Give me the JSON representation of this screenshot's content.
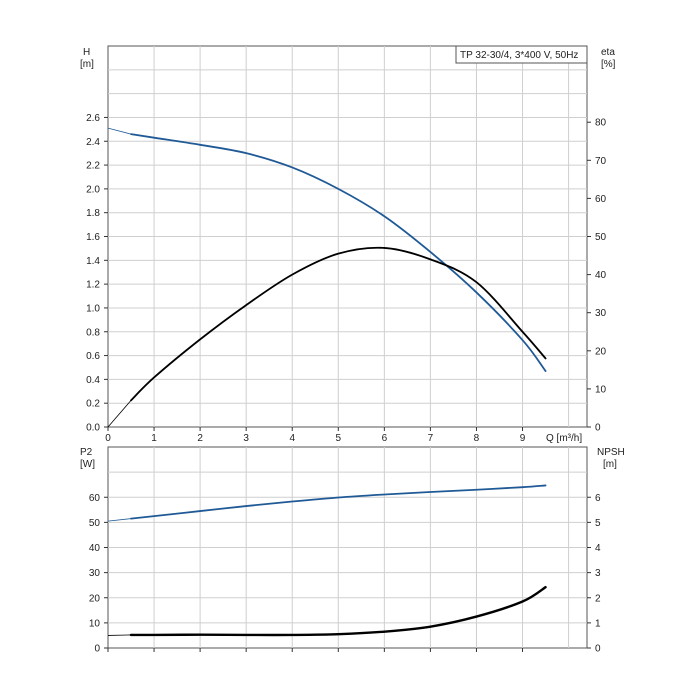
{
  "chart_data": [
    {
      "type": "line",
      "title": "TP 32-30/4, 3*400 V, 50Hz",
      "xlabel": "Q [m³/h]",
      "ylabel_left": [
        "H",
        "[m]"
      ],
      "ylabel_right": [
        "eta",
        "[%]"
      ],
      "xlim": [
        0,
        10.4
      ],
      "ylim_left": [
        0,
        3.2
      ],
      "ylim_right": [
        0,
        100
      ],
      "x_ticks": [
        "0",
        "1",
        "2",
        "3",
        "4",
        "5",
        "6",
        "7",
        "8",
        "9"
      ],
      "y_left_ticks": [
        "0.0",
        "0.2",
        "0.4",
        "0.6",
        "0.8",
        "1.0",
        "1.2",
        "1.4",
        "1.6",
        "1.8",
        "2.0",
        "2.2",
        "2.4",
        "2.6"
      ],
      "y_right_ticks": [
        "0",
        "10",
        "20",
        "30",
        "40",
        "50",
        "60",
        "70",
        "80"
      ],
      "grid": true,
      "series": [
        {
          "axis": "left",
          "color": "#1f5a96",
          "points": [
            [
              0,
              2.51
            ],
            [
              0.5,
              2.46
            ],
            [
              1,
              2.43
            ],
            [
              2,
              2.37
            ],
            [
              3,
              2.3
            ],
            [
              4,
              2.18
            ],
            [
              5,
              2.0
            ],
            [
              6,
              1.77
            ],
            [
              7,
              1.47
            ],
            [
              8,
              1.13
            ],
            [
              9,
              0.73
            ],
            [
              9.5,
              0.47
            ]
          ]
        },
        {
          "axis": "right",
          "color": "#000000",
          "points": [
            [
              0,
              0
            ],
            [
              0.5,
              7
            ],
            [
              1,
              13
            ],
            [
              2,
              23
            ],
            [
              3,
              32
            ],
            [
              4,
              40
            ],
            [
              5,
              45.5
            ],
            [
              6,
              47
            ],
            [
              7,
              44
            ],
            [
              8,
              38
            ],
            [
              9,
              25
            ],
            [
              9.5,
              18
            ]
          ]
        }
      ]
    },
    {
      "type": "line",
      "title": "",
      "xlabel": "",
      "ylabel_left": [
        "P2",
        "[W]"
      ],
      "ylabel_right": [
        "NPSH",
        "[m]"
      ],
      "xlim": [
        0,
        10.4
      ],
      "ylim_left": [
        0,
        80
      ],
      "ylim_right": [
        0,
        8
      ],
      "y_left_ticks": [
        "0",
        "10",
        "20",
        "30",
        "40",
        "50",
        "60"
      ],
      "y_right_ticks": [
        "0",
        "1",
        "2",
        "3",
        "4",
        "5",
        "6"
      ],
      "grid": true,
      "series": [
        {
          "axis": "left",
          "color": "#1f5a96",
          "points": [
            [
              0,
              50.5
            ],
            [
              0.5,
              51.5
            ],
            [
              1,
              52.5
            ],
            [
              2,
              54.5
            ],
            [
              3,
              56.5
            ],
            [
              4,
              58.3
            ],
            [
              5,
              59.9
            ],
            [
              6,
              61.1
            ],
            [
              7,
              62.1
            ],
            [
              8,
              63
            ],
            [
              9,
              64
            ],
            [
              9.5,
              64.7
            ]
          ]
        },
        {
          "axis": "right",
          "color": "#000000",
          "points": [
            [
              0,
              0.5
            ],
            [
              0.5,
              0.52
            ],
            [
              1,
              0.52
            ],
            [
              2,
              0.53
            ],
            [
              3,
              0.52
            ],
            [
              4,
              0.52
            ],
            [
              5,
              0.55
            ],
            [
              6,
              0.65
            ],
            [
              7,
              0.85
            ],
            [
              8,
              1.25
            ],
            [
              9,
              1.85
            ],
            [
              9.5,
              2.42
            ]
          ]
        }
      ]
    }
  ]
}
